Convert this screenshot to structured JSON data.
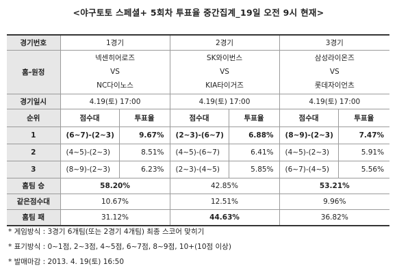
{
  "title": "<야구토토 스페셜+ 5회차 투표율 중간집계_19일 오전 9시 현재>",
  "table": {
    "header_label": "경기번호",
    "games": [
      "1경기",
      "2경기",
      "3경기"
    ],
    "match_label": "홈-원정",
    "matches": [
      {
        "home": "넥센히어로즈",
        "vs": "VS",
        "away": "NC다이노스"
      },
      {
        "home": "SK와이번스",
        "vs": "VS",
        "away": "KIA타이거즈"
      },
      {
        "home": "삼성라이온즈",
        "vs": "VS",
        "away": "롯데자이언츠"
      }
    ],
    "date_label": "경기일시",
    "dates": [
      "4.19(토) 17:00",
      "4.19(토) 17:00",
      "4.19(토) 17:00"
    ],
    "rank_label": "순위",
    "score_label": "점수대",
    "rate_label": "투표율",
    "ranks": [
      {
        "rank": "1",
        "cells": [
          {
            "score": "(6~7)-(2~3)",
            "rate": "9.67%"
          },
          {
            "score": "(2~3)-(6~7)",
            "rate": "6.88%"
          },
          {
            "score": "(8~9)-(2~3)",
            "rate": "7.47%"
          }
        ]
      },
      {
        "rank": "2",
        "cells": [
          {
            "score": "(4~5)-(2~3)",
            "rate": "8.51%"
          },
          {
            "score": "(4~5)-(6~7)",
            "rate": "6.41%"
          },
          {
            "score": "(4~5)-(2~3)",
            "rate": "5.91%"
          }
        ]
      },
      {
        "rank": "3",
        "cells": [
          {
            "score": "(8~9)-(2~3)",
            "rate": "6.23%"
          },
          {
            "score": "(2~3)-(4~5)",
            "rate": "5.85%"
          },
          {
            "score": "(6~7)-(4~5)",
            "rate": "5.56%"
          }
        ]
      }
    ],
    "summary": [
      {
        "label": "홈팀 승",
        "values": [
          "58.20%",
          "42.85%",
          "53.21%"
        ],
        "bold": [
          true,
          false,
          true
        ]
      },
      {
        "label": "같은점수대",
        "values": [
          "10.67%",
          "12.51%",
          "9.96%"
        ],
        "bold": [
          false,
          false,
          false
        ]
      },
      {
        "label": "홈팀 패",
        "values": [
          "31.12%",
          "44.63%",
          "36.82%"
        ],
        "bold": [
          false,
          true,
          false
        ]
      }
    ]
  },
  "notes": [
    "* 게임방식 : 3경기 6개팀(또는 2경기 4개팀) 최종 스코어 맞히기",
    "* 표기방식 : 0~1점, 2~3점, 4~5점, 6~7점, 8~9점, 10+(10점 이상)",
    "* 발매마감 : 2013. 4. 19(토) 16:50"
  ]
}
